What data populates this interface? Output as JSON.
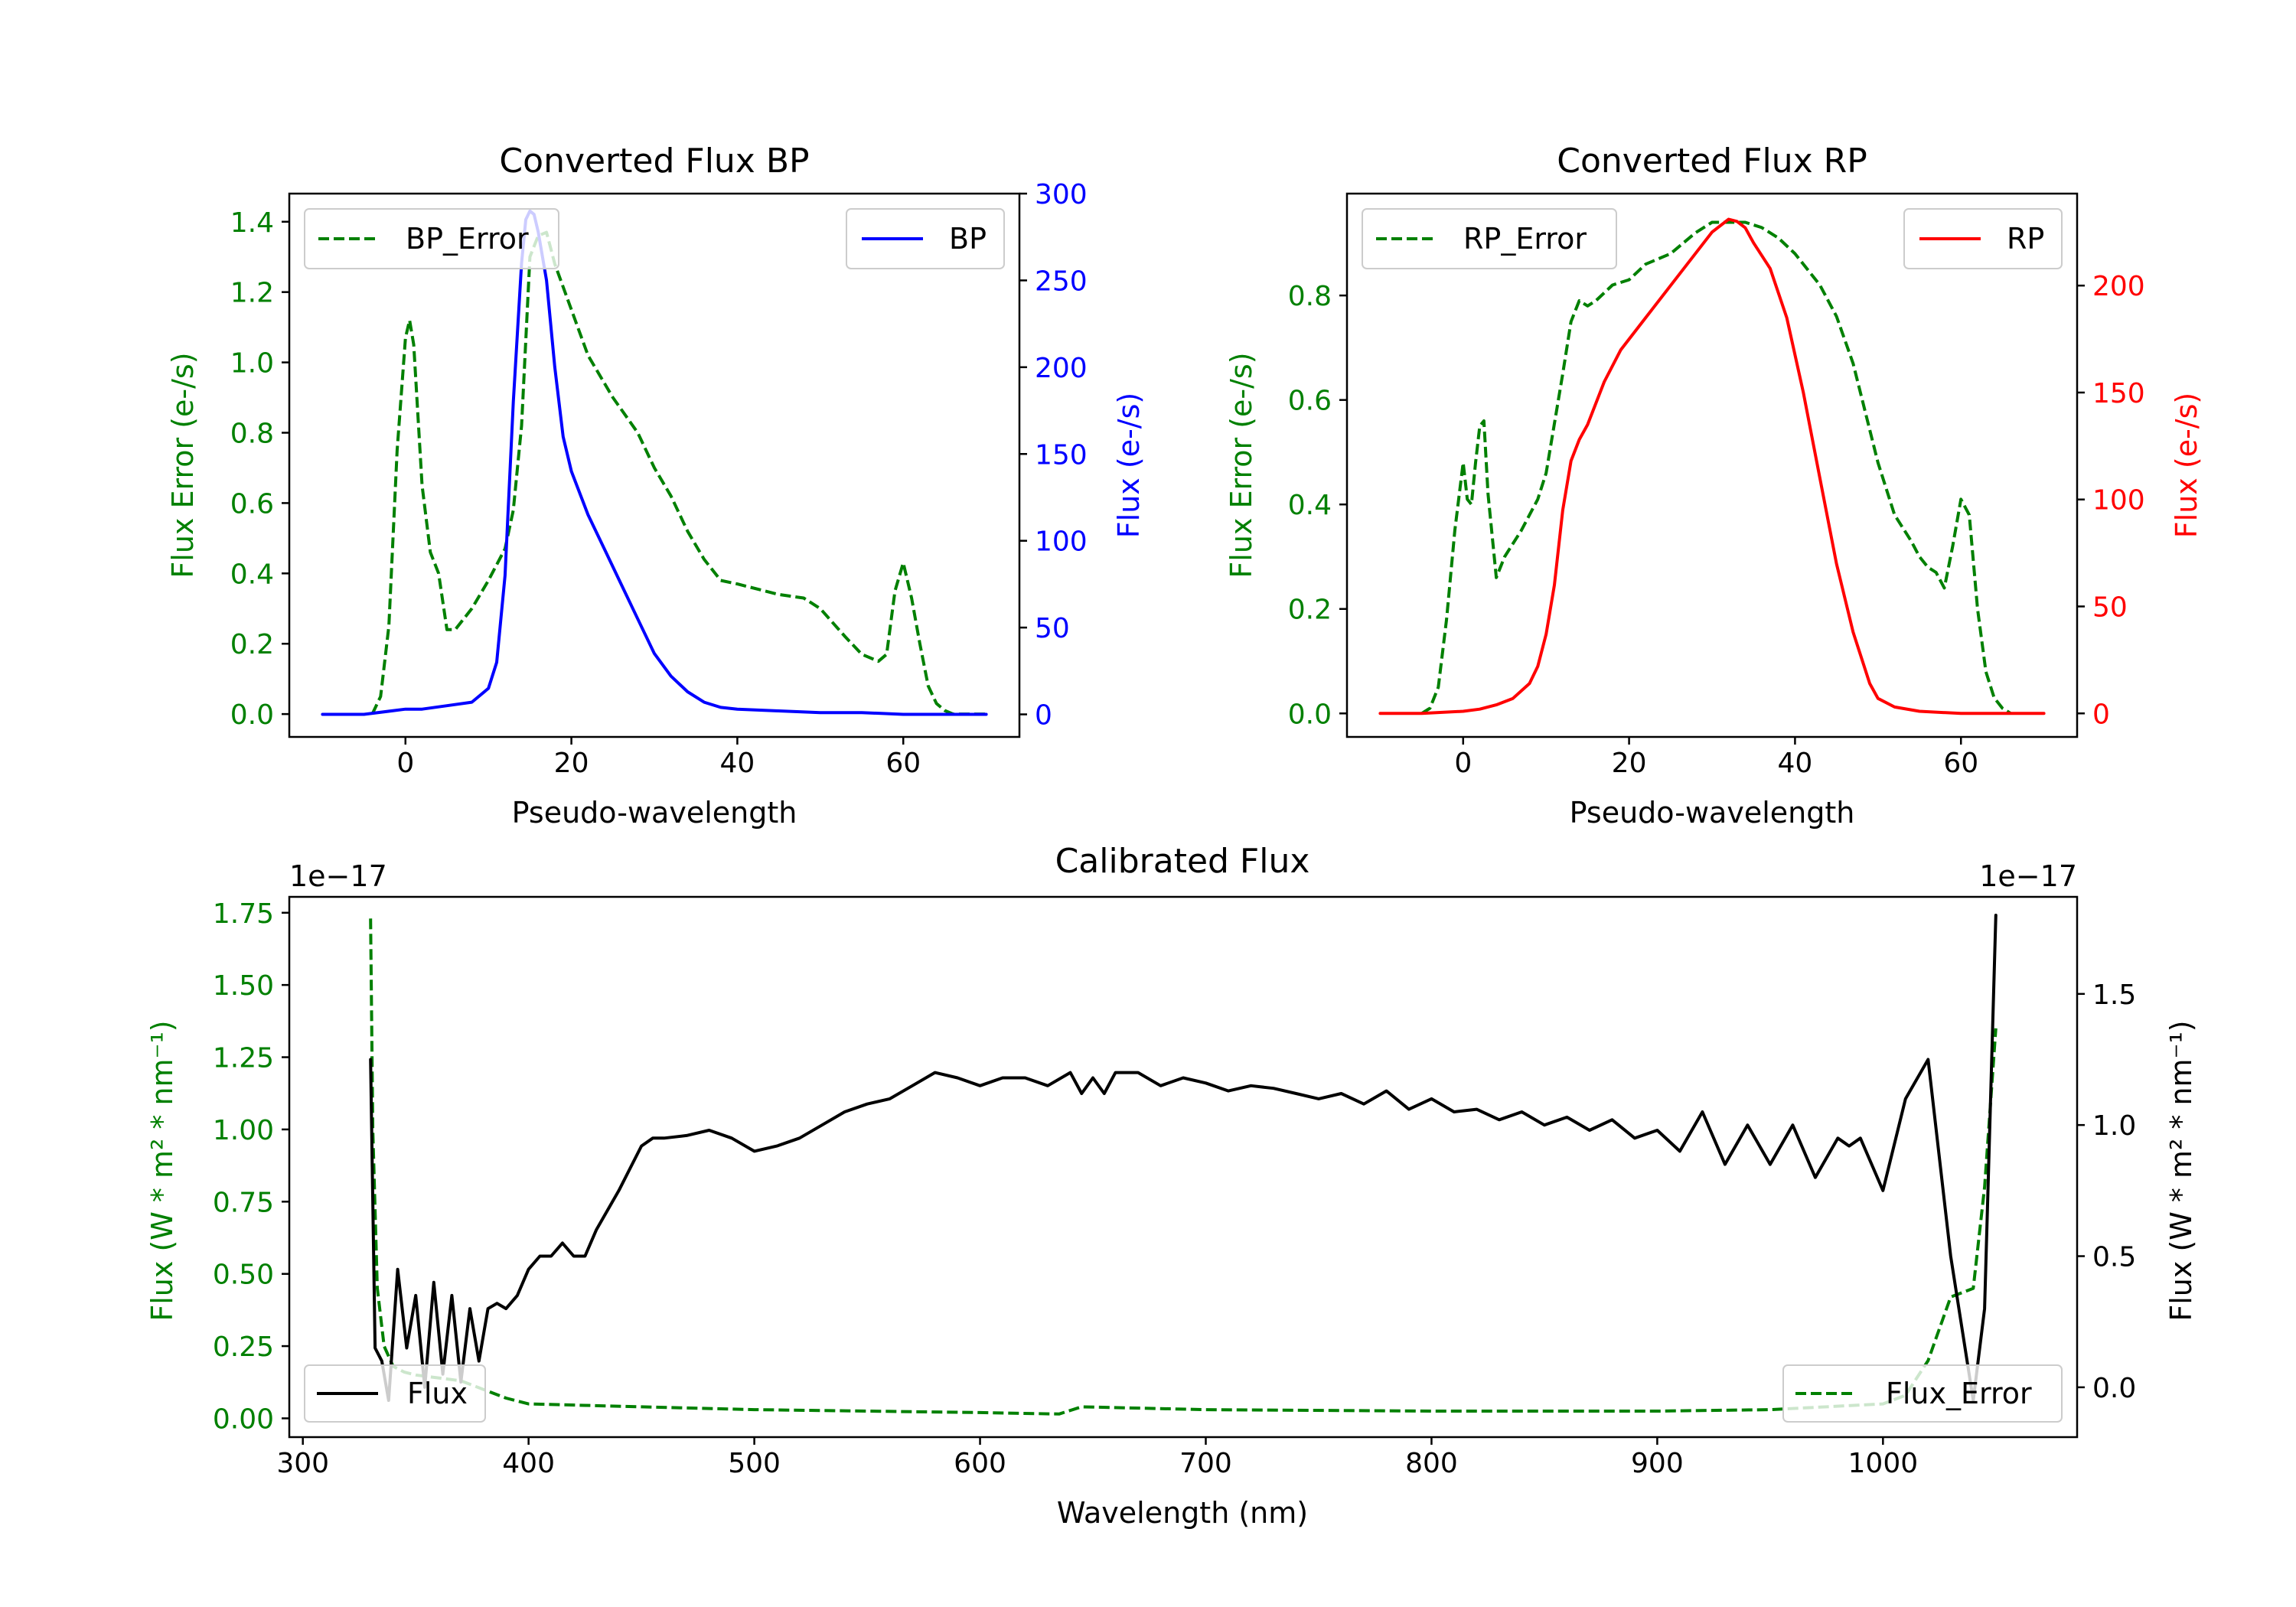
{
  "colors": {
    "bp": "#0000ff",
    "rp": "#ff0000",
    "error": "#008000",
    "flux": "#000000",
    "axis": "#000000"
  },
  "chart_data": [
    {
      "id": "bp",
      "type": "line",
      "title": "Converted Flux BP",
      "xlabel": "Pseudo-wavelength",
      "ylabel_left": "Flux Error (e-/s)",
      "ylabel_right": "Flux (e-/s)",
      "xlim": [
        -14,
        74
      ],
      "ylim_left": [
        -0.065,
        1.48
      ],
      "ylim_right": [
        -13,
        300
      ],
      "xticks": [
        0,
        20,
        40,
        60
      ],
      "xtick_labels": [
        "0",
        "20",
        "40",
        "60"
      ],
      "yticks_left": [
        0.0,
        0.2,
        0.4,
        0.6,
        0.8,
        1.0,
        1.2,
        1.4
      ],
      "ytick_labels_left": [
        "0.0",
        "0.2",
        "0.4",
        "0.6",
        "0.8",
        "1.0",
        "1.2",
        "1.4"
      ],
      "yticks_right": [
        0,
        50,
        100,
        150,
        200,
        250,
        300
      ],
      "ytick_labels_right": [
        "0",
        "50",
        "100",
        "150",
        "200",
        "250",
        "300"
      ],
      "legend_left": {
        "label": "BP_Error",
        "position": "upper left"
      },
      "legend_right": {
        "label": "BP",
        "position": "upper right"
      },
      "series": [
        {
          "name": "BP_Error",
          "axis": "left",
          "style": "dashed",
          "color_key": "error",
          "x": [
            -4,
            -3,
            -2,
            -1,
            0,
            0.5,
            1,
            2,
            3,
            4,
            5,
            6,
            8,
            10,
            12,
            13,
            14,
            15,
            16,
            17,
            18,
            20,
            22,
            25,
            28,
            30,
            32,
            34,
            36,
            38,
            40,
            45,
            48,
            50,
            53,
            55,
            57,
            58,
            59,
            60,
            61,
            62,
            63,
            64,
            65,
            66,
            68,
            70
          ],
          "y": [
            0.0,
            0.05,
            0.25,
            0.75,
            1.07,
            1.12,
            1.05,
            0.65,
            0.46,
            0.4,
            0.24,
            0.24,
            0.3,
            0.38,
            0.47,
            0.58,
            0.82,
            1.3,
            1.36,
            1.37,
            1.28,
            1.15,
            1.02,
            0.9,
            0.8,
            0.7,
            0.62,
            0.52,
            0.44,
            0.38,
            0.37,
            0.34,
            0.33,
            0.3,
            0.22,
            0.17,
            0.15,
            0.17,
            0.35,
            0.43,
            0.33,
            0.2,
            0.08,
            0.03,
            0.01,
            0.0,
            0.0,
            0.0
          ]
        },
        {
          "name": "BP",
          "axis": "right",
          "style": "solid",
          "color_key": "bp",
          "x": [
            -10,
            -5,
            0,
            2,
            5,
            8,
            10,
            11,
            12,
            13,
            14,
            14.5,
            15,
            15.5,
            16,
            17,
            18,
            19,
            20,
            22,
            24,
            26,
            28,
            30,
            32,
            34,
            36,
            38,
            40,
            45,
            50,
            55,
            60,
            65,
            70
          ],
          "y": [
            0,
            0,
            3,
            3,
            5,
            7,
            15,
            30,
            80,
            180,
            260,
            285,
            290,
            288,
            278,
            250,
            200,
            160,
            140,
            115,
            95,
            75,
            55,
            35,
            22,
            13,
            7,
            4,
            3,
            2,
            1,
            1,
            0,
            0,
            0
          ]
        }
      ]
    },
    {
      "id": "rp",
      "type": "line",
      "title": "Converted Flux RP",
      "xlabel": "Pseudo-wavelength",
      "ylabel_left": "Flux Error (e-/s)",
      "ylabel_right": "Flux (e-/s)",
      "xlim": [
        -14,
        74
      ],
      "ylim_left": [
        -0.045,
        0.995
      ],
      "ylim_right": [
        -11,
        243
      ],
      "xticks": [
        0,
        20,
        40,
        60
      ],
      "xtick_labels": [
        "0",
        "20",
        "40",
        "60"
      ],
      "yticks_left": [
        0.0,
        0.2,
        0.4,
        0.6,
        0.8
      ],
      "ytick_labels_left": [
        "0.0",
        "0.2",
        "0.4",
        "0.6",
        "0.8"
      ],
      "yticks_right": [
        0,
        50,
        100,
        150,
        200
      ],
      "ytick_labels_right": [
        "0",
        "50",
        "100",
        "150",
        "200"
      ],
      "legend_left": {
        "label": "RP_Error",
        "position": "upper left"
      },
      "legend_right": {
        "label": "RP",
        "position": "upper right"
      },
      "series": [
        {
          "name": "RP_Error",
          "axis": "left",
          "style": "dashed",
          "color_key": "error",
          "x": [
            -5,
            -4,
            -3,
            -2,
            -1,
            0,
            0.5,
            1,
            1.5,
            2,
            2.5,
            3,
            4,
            5,
            7,
            9,
            10,
            12,
            13,
            14,
            15,
            16,
            18,
            20,
            22,
            25,
            28,
            30,
            32,
            34,
            36,
            38,
            40,
            43,
            45,
            47,
            50,
            52,
            54,
            55,
            56,
            57,
            58,
            59,
            60,
            61,
            62,
            63,
            64,
            65,
            66
          ],
          "y": [
            0.0,
            0.01,
            0.05,
            0.18,
            0.35,
            0.48,
            0.41,
            0.4,
            0.48,
            0.55,
            0.56,
            0.42,
            0.26,
            0.3,
            0.35,
            0.41,
            0.46,
            0.65,
            0.75,
            0.79,
            0.78,
            0.79,
            0.82,
            0.83,
            0.86,
            0.88,
            0.92,
            0.94,
            0.94,
            0.94,
            0.93,
            0.91,
            0.88,
            0.82,
            0.76,
            0.67,
            0.48,
            0.38,
            0.33,
            0.3,
            0.28,
            0.27,
            0.24,
            0.32,
            0.41,
            0.38,
            0.2,
            0.08,
            0.03,
            0.01,
            0.0
          ]
        },
        {
          "name": "RP",
          "axis": "right",
          "style": "solid",
          "color_key": "rp",
          "x": [
            -10,
            -5,
            0,
            2,
            4,
            6,
            8,
            9,
            10,
            11,
            12,
            13,
            14,
            15,
            17,
            19,
            22,
            25,
            28,
            30,
            32,
            33,
            34,
            35,
            37,
            39,
            41,
            43,
            45,
            47,
            49,
            50,
            52,
            55,
            60,
            65,
            70
          ],
          "y": [
            0,
            0,
            1,
            2,
            4,
            7,
            14,
            22,
            37,
            60,
            95,
            118,
            128,
            135,
            155,
            170,
            185,
            200,
            215,
            225,
            231,
            230,
            227,
            220,
            208,
            185,
            150,
            110,
            70,
            38,
            14,
            7,
            3,
            1,
            0,
            0,
            0
          ]
        }
      ]
    },
    {
      "id": "calibrated",
      "type": "line",
      "title": "Calibrated Flux",
      "xlabel": "Wavelength (nm)",
      "ylabel_left": "Flux (W * m² * nm⁻¹)",
      "ylabel_right": "Flux (W * m² * nm⁻¹)",
      "offset_left": "1e−17",
      "offset_right": "1e−17",
      "xlim": [
        294,
        1086
      ],
      "ylim_left": [
        -0.065,
        1.805
      ],
      "ylim_right": [
        -0.19,
        1.87
      ],
      "xticks": [
        300,
        400,
        500,
        600,
        700,
        800,
        900,
        1000
      ],
      "xtick_labels": [
        "300",
        "400",
        "500",
        "600",
        "700",
        "800",
        "900",
        "1000"
      ],
      "yticks_left": [
        0.0,
        0.25,
        0.5,
        0.75,
        1.0,
        1.25,
        1.5,
        1.75
      ],
      "ytick_labels_left": [
        "0.00",
        "0.25",
        "0.50",
        "0.75",
        "1.00",
        "1.25",
        "1.50",
        "1.75"
      ],
      "yticks_right": [
        0.0,
        0.5,
        1.0,
        1.5
      ],
      "ytick_labels_right": [
        "0.0",
        "0.5",
        "1.0",
        "1.5"
      ],
      "legend_left": {
        "label": "Flux",
        "position": "lower left"
      },
      "legend_right": {
        "label": "Flux_Error",
        "position": "lower right"
      },
      "series": [
        {
          "name": "Flux_Error",
          "axis": "left",
          "style": "dashed",
          "color_key": "error",
          "x": [
            330,
            331,
            333,
            336,
            340,
            345,
            350,
            360,
            370,
            380,
            390,
            400,
            450,
            500,
            550,
            600,
            635,
            645,
            700,
            800,
            900,
            950,
            1000,
            1010,
            1020,
            1030,
            1040,
            1045,
            1050
          ],
          "y": [
            1.73,
            1.0,
            0.45,
            0.25,
            0.18,
            0.16,
            0.15,
            0.14,
            0.13,
            0.1,
            0.07,
            0.05,
            0.04,
            0.03,
            0.025,
            0.02,
            0.015,
            0.04,
            0.03,
            0.025,
            0.025,
            0.03,
            0.05,
            0.08,
            0.2,
            0.42,
            0.45,
            0.8,
            1.35
          ]
        },
        {
          "name": "Flux",
          "axis": "right",
          "style": "solid",
          "color_key": "flux",
          "x": [
            330,
            332,
            335,
            338,
            342,
            346,
            350,
            354,
            358,
            362,
            366,
            370,
            374,
            378,
            382,
            386,
            390,
            395,
            400,
            405,
            410,
            415,
            420,
            425,
            430,
            440,
            450,
            455,
            460,
            470,
            480,
            490,
            500,
            510,
            520,
            530,
            540,
            550,
            560,
            570,
            580,
            590,
            600,
            610,
            620,
            630,
            640,
            645,
            650,
            655,
            660,
            670,
            680,
            690,
            700,
            710,
            720,
            730,
            740,
            750,
            760,
            770,
            780,
            790,
            800,
            810,
            820,
            830,
            840,
            850,
            860,
            870,
            880,
            890,
            900,
            910,
            920,
            930,
            940,
            950,
            960,
            970,
            980,
            985,
            990,
            1000,
            1010,
            1020,
            1030,
            1040,
            1045,
            1050
          ],
          "y": [
            1.25,
            0.15,
            0.1,
            -0.05,
            0.45,
            0.15,
            0.35,
            0.0,
            0.4,
            0.05,
            0.35,
            0.02,
            0.3,
            0.1,
            0.3,
            0.32,
            0.3,
            0.35,
            0.45,
            0.5,
            0.5,
            0.55,
            0.5,
            0.5,
            0.6,
            0.75,
            0.92,
            0.95,
            0.95,
            0.96,
            0.98,
            0.95,
            0.9,
            0.92,
            0.95,
            1.0,
            1.05,
            1.08,
            1.1,
            1.15,
            1.2,
            1.18,
            1.15,
            1.18,
            1.18,
            1.15,
            1.2,
            1.12,
            1.18,
            1.12,
            1.2,
            1.2,
            1.15,
            1.18,
            1.16,
            1.13,
            1.15,
            1.14,
            1.12,
            1.1,
            1.12,
            1.08,
            1.13,
            1.06,
            1.1,
            1.05,
            1.06,
            1.02,
            1.05,
            1.0,
            1.03,
            0.98,
            1.02,
            0.95,
            0.98,
            0.9,
            1.05,
            0.85,
            1.0,
            0.85,
            1.0,
            0.8,
            0.95,
            0.92,
            0.95,
            0.75,
            1.1,
            1.25,
            0.5,
            -0.05,
            0.3,
            1.8
          ]
        }
      ]
    }
  ]
}
